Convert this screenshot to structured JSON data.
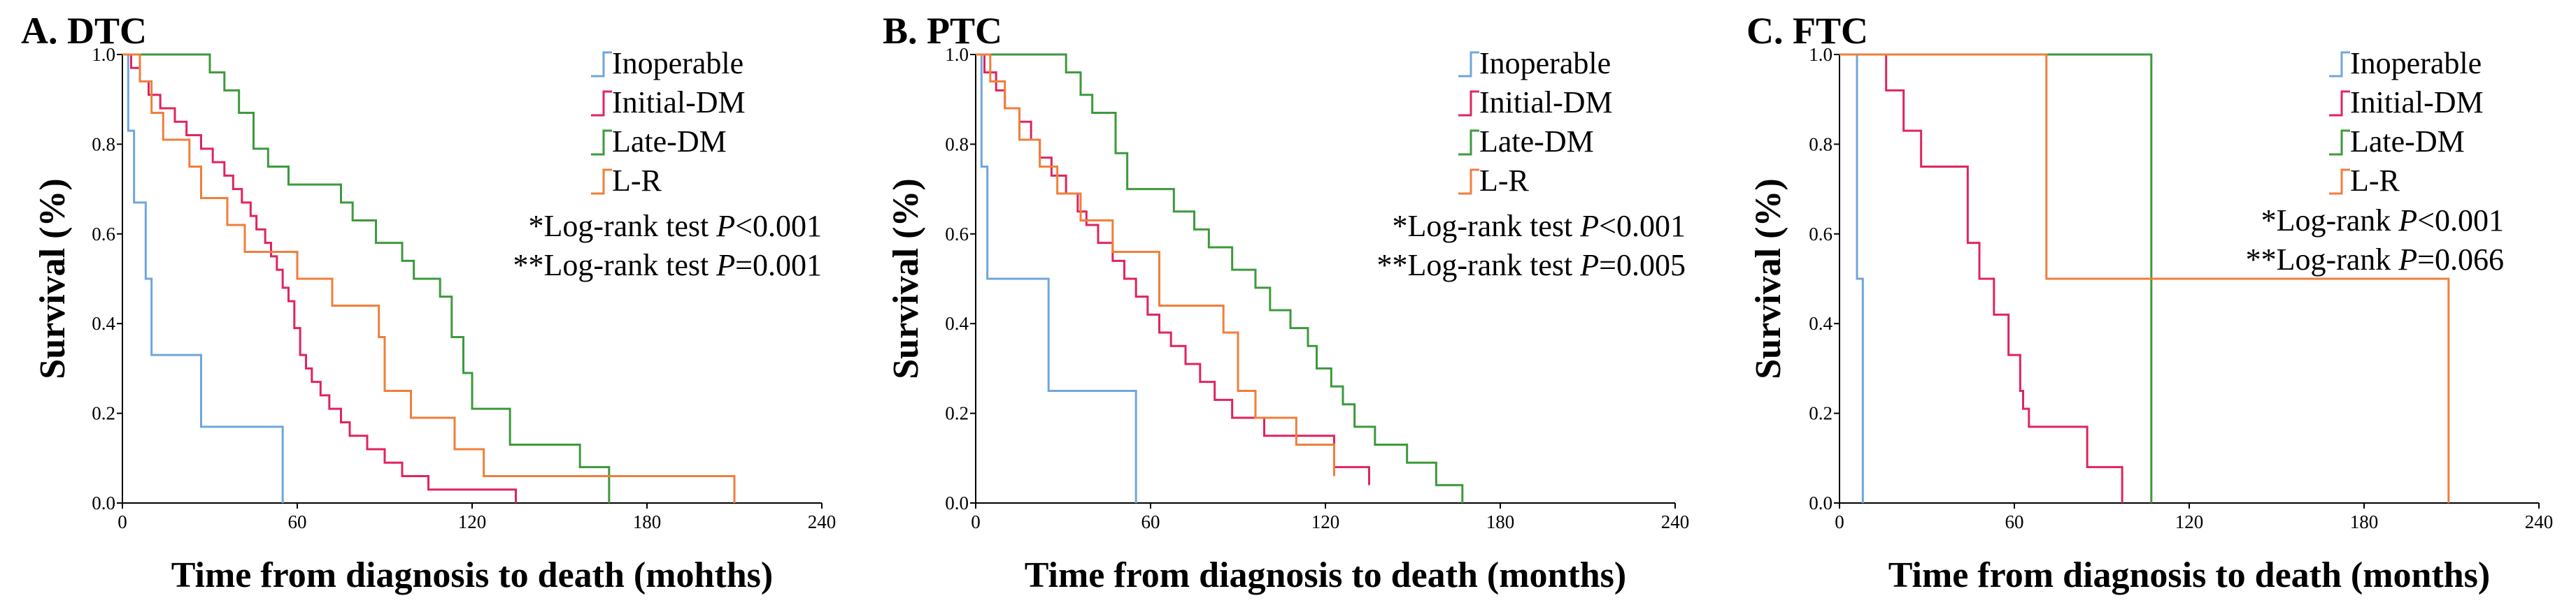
{
  "colors": {
    "Inoperable": "#6fa6dc",
    "Initial-DM": "#e0245e",
    "Late-DM": "#3c9a3c",
    "L-R": "#ef7f3b"
  },
  "chart_data": [
    {
      "type": "line",
      "step": true,
      "title": "A. DTC",
      "xlabel": "Time from diagnosis to death (mohths)",
      "ylabel": "Survival (%)",
      "xlim": [
        0,
        240
      ],
      "ylim": [
        0,
        1.0
      ],
      "xticks": [
        "0",
        "60",
        "120",
        "180",
        "240"
      ],
      "yticks": [
        "0.0",
        "0.2",
        "0.4",
        "0.6",
        "0.8",
        "1.0"
      ],
      "legend_position": "top-right",
      "legend": [
        "Inoperable",
        "Initial-DM",
        "Late-DM",
        "L-R"
      ],
      "stats": [
        "*Log-rank test ",
        "P",
        "<0.001",
        "**Log-rank test ",
        "P",
        "=0.001"
      ],
      "series": [
        {
          "name": "Inoperable",
          "x": [
            0,
            2,
            4,
            8,
            10,
            27,
            55
          ],
          "y": [
            1.0,
            0.83,
            0.67,
            0.5,
            0.33,
            0.17,
            0.0
          ]
        },
        {
          "name": "Initial-DM",
          "x": [
            0,
            3,
            6,
            9,
            13,
            18,
            22,
            27,
            31,
            35,
            38,
            41,
            44,
            46,
            49,
            51,
            53,
            55,
            57,
            59,
            61,
            63,
            65,
            68,
            71,
            75,
            78,
            84,
            90,
            96,
            105,
            135
          ],
          "y": [
            1.0,
            0.97,
            0.94,
            0.91,
            0.88,
            0.85,
            0.82,
            0.79,
            0.76,
            0.73,
            0.7,
            0.67,
            0.64,
            0.61,
            0.58,
            0.55,
            0.52,
            0.48,
            0.45,
            0.39,
            0.33,
            0.3,
            0.27,
            0.24,
            0.21,
            0.18,
            0.15,
            0.12,
            0.09,
            0.06,
            0.03,
            0.0
          ]
        },
        {
          "name": "Late-DM",
          "x": [
            0,
            30,
            35,
            40,
            45,
            50,
            57,
            75,
            79,
            87,
            96,
            100,
            109,
            113,
            117,
            120,
            133,
            157,
            167
          ],
          "y": [
            1.0,
            0.96,
            0.92,
            0.87,
            0.79,
            0.75,
            0.71,
            0.67,
            0.63,
            0.58,
            0.54,
            0.5,
            0.46,
            0.37,
            0.29,
            0.21,
            0.13,
            0.08,
            0.0
          ]
        },
        {
          "name": "L-R",
          "x": [
            0,
            6,
            10,
            14,
            23,
            27,
            36,
            42,
            60,
            72,
            88,
            90,
            99,
            114,
            124,
            210
          ],
          "y": [
            1.0,
            0.94,
            0.87,
            0.81,
            0.75,
            0.68,
            0.62,
            0.56,
            0.5,
            0.44,
            0.37,
            0.25,
            0.19,
            0.12,
            0.06,
            0.0
          ]
        }
      ]
    },
    {
      "type": "line",
      "step": true,
      "title": "B. PTC",
      "xlabel": "Time from diagnosis to death (months)",
      "ylabel": "Survival (%)",
      "xlim": [
        0,
        240
      ],
      "ylim": [
        0,
        1.0
      ],
      "xticks": [
        "0",
        "60",
        "120",
        "180",
        "240"
      ],
      "yticks": [
        "0.0",
        "0.2",
        "0.4",
        "0.6",
        "0.8",
        "1.0"
      ],
      "legend_position": "top-right",
      "legend": [
        "Inoperable",
        "Initial-DM",
        "Late-DM",
        "L-R"
      ],
      "stats": [
        "*Log-rank test ",
        "P",
        "<0.001",
        "**Log-rank test ",
        "P",
        "=0.005"
      ],
      "series": [
        {
          "name": "Inoperable",
          "x": [
            0,
            2,
            4,
            25,
            55
          ],
          "y": [
            1.0,
            0.75,
            0.5,
            0.25,
            0.0
          ]
        },
        {
          "name": "Initial-DM",
          "x": [
            0,
            3,
            7,
            10,
            15,
            19,
            22,
            26,
            31,
            35,
            38,
            42,
            47,
            51,
            55,
            59,
            63,
            67,
            72,
            77,
            82,
            88,
            99,
            123,
            135
          ],
          "y": [
            1.0,
            0.96,
            0.92,
            0.88,
            0.85,
            0.81,
            0.77,
            0.73,
            0.69,
            0.65,
            0.62,
            0.58,
            0.54,
            0.5,
            0.46,
            0.42,
            0.38,
            0.35,
            0.31,
            0.27,
            0.23,
            0.19,
            0.15,
            0.08,
            0.04
          ]
        },
        {
          "name": "Late-DM",
          "x": [
            0,
            31,
            36,
            40,
            48,
            52,
            68,
            75,
            80,
            88,
            96,
            101,
            108,
            114,
            117,
            122,
            126,
            130,
            137,
            148,
            158,
            167
          ],
          "y": [
            1.0,
            0.96,
            0.91,
            0.87,
            0.78,
            0.7,
            0.65,
            0.61,
            0.57,
            0.52,
            0.48,
            0.43,
            0.39,
            0.35,
            0.3,
            0.26,
            0.22,
            0.17,
            0.13,
            0.09,
            0.04,
            0.0
          ]
        },
        {
          "name": "L-R",
          "x": [
            0,
            5,
            10,
            15,
            22,
            28,
            36,
            47,
            63,
            85,
            90,
            96,
            110,
            123
          ],
          "y": [
            1.0,
            0.94,
            0.88,
            0.81,
            0.75,
            0.69,
            0.63,
            0.56,
            0.44,
            0.38,
            0.25,
            0.19,
            0.13,
            0.06
          ]
        }
      ]
    },
    {
      "type": "line",
      "step": true,
      "title": "C. FTC",
      "xlabel": "Time from diagnosis to death (months)",
      "ylabel": "Survival (%)",
      "xlim": [
        0,
        240
      ],
      "ylim": [
        0,
        1.0
      ],
      "xticks": [
        "0",
        "60",
        "120",
        "180",
        "240"
      ],
      "yticks": [
        "0.0",
        "0.2",
        "0.4",
        "0.6",
        "0.8",
        "1.0"
      ],
      "legend_position": "top-right",
      "legend": [
        "Inoperable",
        "Initial-DM",
        "Late-DM",
        "L-R"
      ],
      "stats": [
        "*Log-rank ",
        "P",
        "<0.001",
        "**Log-rank ",
        "P",
        "=0.066"
      ],
      "series": [
        {
          "name": "Inoperable",
          "x": [
            0,
            6,
            8
          ],
          "y": [
            1.0,
            0.5,
            0.0
          ]
        },
        {
          "name": "Initial-DM",
          "x": [
            0,
            16,
            22,
            28,
            44,
            48,
            53,
            58,
            62,
            63,
            65,
            85,
            97
          ],
          "y": [
            1.0,
            0.92,
            0.83,
            0.75,
            0.58,
            0.5,
            0.42,
            0.33,
            0.25,
            0.21,
            0.17,
            0.08,
            0.0
          ]
        },
        {
          "name": "Late-DM",
          "x": [
            0,
            107
          ],
          "y": [
            1.0,
            0.0
          ]
        },
        {
          "name": "L-R",
          "x": [
            0,
            71,
            209
          ],
          "y": [
            1.0,
            0.5,
            0.0
          ]
        }
      ]
    }
  ]
}
